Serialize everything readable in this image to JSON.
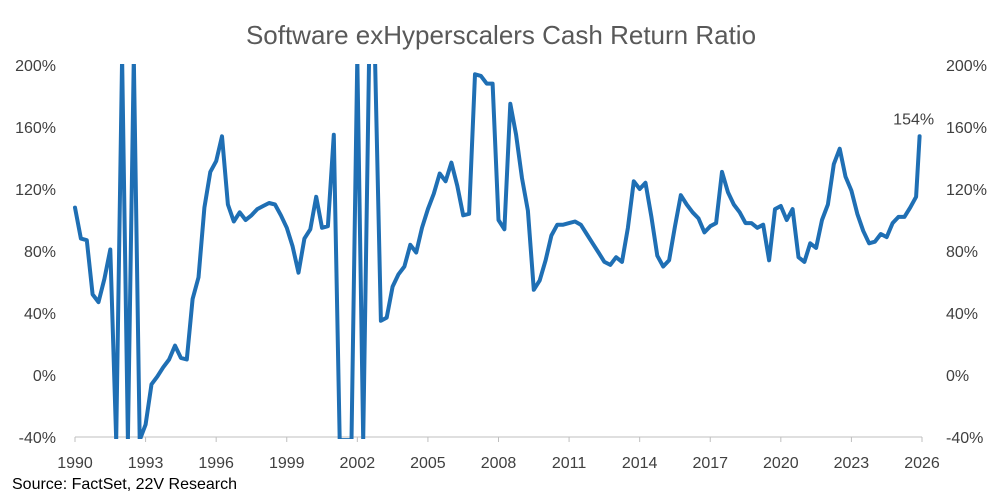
{
  "chart_data": {
    "type": "line",
    "title": "Software exHyperscalers Cash Return Ratio",
    "source": "Source: FactSet, 22V Research",
    "x_tick_labels": [
      "1990",
      "1993",
      "1996",
      "1999",
      "2002",
      "2005",
      "2008",
      "2011",
      "2014",
      "2017",
      "2020",
      "2023",
      "2026"
    ],
    "y_tick_labels": [
      "200%",
      "160%",
      "120%",
      "80%",
      "40%",
      "0%",
      "-40%"
    ],
    "y_tick_values": [
      200,
      160,
      120,
      80,
      40,
      0,
      -40
    ],
    "xlim": [
      1990,
      2026
    ],
    "ylim": [
      -40,
      200
    ],
    "annotation": {
      "text": "154%",
      "x": 2025.9,
      "y": 154
    },
    "series": [
      {
        "color": "#1f6fb4",
        "x": [
          1990.0,
          1990.25,
          1990.5,
          1990.75,
          1991.0,
          1991.25,
          1991.5,
          1991.75,
          1992.0,
          1992.25,
          1992.5,
          1992.75,
          1993.0,
          1993.25,
          1993.5,
          1993.75,
          1994.0,
          1994.25,
          1994.5,
          1994.75,
          1995.0,
          1995.25,
          1995.5,
          1995.75,
          1996.0,
          1996.25,
          1996.5,
          1996.75,
          1997.0,
          1997.25,
          1997.5,
          1997.75,
          1998.0,
          1998.25,
          1998.5,
          1998.75,
          1999.0,
          1999.25,
          1999.5,
          1999.75,
          2000.0,
          2000.25,
          2000.5,
          2000.75,
          2001.0,
          2001.25,
          2001.5,
          2001.75,
          2002.0,
          2002.25,
          2002.5,
          2002.75,
          2003.0,
          2003.25,
          2003.5,
          2003.75,
          2004.0,
          2004.25,
          2004.5,
          2004.75,
          2005.0,
          2005.25,
          2005.5,
          2005.75,
          2006.0,
          2006.25,
          2006.5,
          2006.75,
          2007.0,
          2007.25,
          2007.5,
          2007.75,
          2008.0,
          2008.25,
          2008.5,
          2008.75,
          2009.0,
          2009.25,
          2009.5,
          2009.75,
          2010.0,
          2010.25,
          2010.5,
          2010.75,
          2011.0,
          2011.25,
          2011.5,
          2011.75,
          2012.0,
          2012.25,
          2012.5,
          2012.75,
          2013.0,
          2013.25,
          2013.5,
          2013.75,
          2014.0,
          2014.25,
          2014.5,
          2014.75,
          2015.0,
          2015.25,
          2015.5,
          2015.75,
          2016.0,
          2016.25,
          2016.5,
          2016.75,
          2017.0,
          2017.25,
          2017.5,
          2017.75,
          2018.0,
          2018.25,
          2018.5,
          2018.75,
          2019.0,
          2019.25,
          2019.5,
          2019.75,
          2020.0,
          2020.25,
          2020.5,
          2020.75,
          2021.0,
          2021.25,
          2021.5,
          2021.75,
          2022.0,
          2022.25,
          2022.5,
          2022.75,
          2023.0,
          2023.25,
          2023.5,
          2023.75,
          2024.0,
          2024.25,
          2024.5,
          2024.75,
          2025.0,
          2025.25,
          2025.5,
          2025.75,
          2025.9
        ],
        "values": [
          108,
          88,
          87,
          52,
          47,
          62,
          81,
          -42,
          205,
          -42,
          205,
          -42,
          -32,
          -6,
          -1,
          5,
          10,
          19,
          11,
          10,
          49,
          63,
          108,
          131,
          138,
          154,
          110,
          99,
          105,
          100,
          103,
          107,
          109,
          111,
          110,
          103,
          95,
          83,
          66,
          88,
          94,
          115,
          95,
          96,
          155,
          -42,
          -42,
          -42,
          205,
          -42,
          205,
          205,
          35,
          37,
          57,
          65,
          70,
          84,
          79,
          95,
          107,
          117,
          130,
          125,
          137,
          122,
          103,
          104,
          194,
          193,
          188,
          188,
          100,
          94,
          175,
          155,
          127,
          106,
          55,
          61,
          74,
          90,
          97,
          97,
          98,
          99,
          97,
          91,
          85,
          79,
          73,
          71,
          76,
          73,
          95,
          125,
          120,
          124,
          102,
          77,
          70,
          74,
          96,
          116,
          110,
          105,
          101,
          92,
          96,
          98,
          131,
          118,
          110,
          105,
          98,
          98,
          95,
          97,
          74,
          107,
          109,
          100,
          107,
          76,
          73,
          85,
          82,
          100,
          110,
          136,
          146,
          128,
          119,
          104,
          93,
          85,
          86,
          91,
          89,
          98,
          102,
          102,
          108,
          115,
          154
        ]
      }
    ]
  }
}
